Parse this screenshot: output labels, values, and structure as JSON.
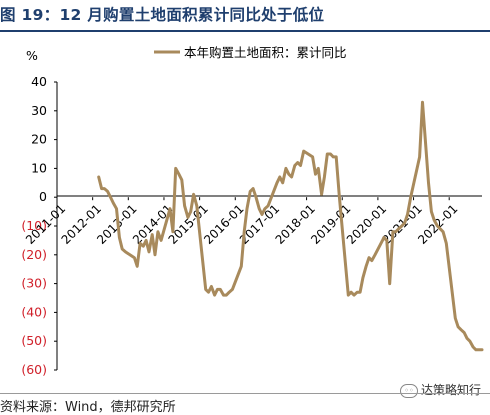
{
  "figure": {
    "title": "图 19：12 月购置土地面积累计同比处于低位",
    "source": "资料来源：Wind，德邦研究所",
    "watermark": "达策略知行"
  },
  "chart_data": {
    "type": "line",
    "ylabel": "%",
    "ylim": [
      -60,
      40
    ],
    "yticks": [
      40,
      30,
      20,
      10,
      0,
      -10,
      -20,
      -30,
      -40,
      -50,
      -60
    ],
    "ytick_labels": [
      "40",
      "30",
      "20",
      "10",
      "0",
      "(10)",
      "(20)",
      "(30)",
      "(40)",
      "(50)",
      "(60)"
    ],
    "xtick_labels": [
      "2011-01",
      "2012-01",
      "2013-01",
      "2014-01",
      "2015-01",
      "2016-01",
      "2017-01",
      "2018-01",
      "2019-01",
      "2020-01",
      "2021-01",
      "2022-01"
    ],
    "xlim": [
      2011.0,
      2022.92
    ],
    "series": [
      {
        "name": "本年购置土地面积：累计同比",
        "color": "#a88a5c",
        "x": [
          2012.17,
          2012.25,
          2012.33,
          2012.42,
          2012.5,
          2012.58,
          2012.67,
          2012.75,
          2012.83,
          2012.92,
          2013.17,
          2013.25,
          2013.33,
          2013.42,
          2013.5,
          2013.58,
          2013.67,
          2013.75,
          2013.83,
          2013.92,
          2014.17,
          2014.25,
          2014.33,
          2014.42,
          2014.5,
          2014.58,
          2014.67,
          2014.75,
          2014.83,
          2014.92,
          2015.17,
          2015.25,
          2015.33,
          2015.42,
          2015.5,
          2015.58,
          2015.67,
          2015.75,
          2015.83,
          2015.92,
          2016.17,
          2016.25,
          2016.33,
          2016.42,
          2016.5,
          2016.58,
          2016.67,
          2016.75,
          2016.83,
          2016.92,
          2017.17,
          2017.25,
          2017.33,
          2017.42,
          2017.5,
          2017.58,
          2017.67,
          2017.75,
          2017.83,
          2017.92,
          2018.17,
          2018.25,
          2018.33,
          2018.42,
          2018.5,
          2018.58,
          2018.67,
          2018.75,
          2018.83,
          2018.92,
          2019.17,
          2019.25,
          2019.33,
          2019.42,
          2019.5,
          2019.58,
          2019.67,
          2019.75,
          2019.83,
          2019.92,
          2020.17,
          2020.25,
          2020.33,
          2020.42,
          2020.5,
          2020.58,
          2020.67,
          2020.75,
          2020.83,
          2020.92,
          2021.17,
          2021.25,
          2021.33,
          2021.42,
          2021.5,
          2021.58,
          2021.67,
          2021.75,
          2021.83,
          2021.92,
          2022.17,
          2022.25,
          2022.33,
          2022.42,
          2022.5,
          2022.58,
          2022.67,
          2022.75,
          2022.83,
          2022.92
        ],
        "values": [
          7,
          3,
          3,
          2,
          0,
          -2,
          -4,
          -14,
          -18,
          -19,
          -21,
          -24,
          -16,
          -17,
          -15,
          -19,
          -13,
          -20,
          -12,
          -15,
          -4,
          -12,
          10,
          8,
          6,
          -3,
          -7,
          -5,
          1,
          -3,
          -32,
          -33,
          -31,
          -34,
          -32,
          -32,
          -34,
          -34,
          -33,
          -32,
          -24,
          -12,
          -4,
          2,
          3,
          0,
          -4,
          -6,
          -4,
          -3,
          5,
          7,
          5,
          10,
          8,
          7,
          11,
          12,
          11,
          16,
          14,
          8,
          10,
          1,
          7,
          15,
          15,
          14,
          14,
          0,
          -34,
          -33,
          -34,
          -33,
          -33,
          -28,
          -24,
          -21,
          -22,
          -20,
          -14,
          -15,
          -30,
          -12,
          -12,
          -11,
          -10,
          -9,
          -6,
          0,
          14,
          33,
          20,
          5,
          -5,
          -8,
          -10,
          -11,
          -12,
          -16,
          -42,
          -45,
          -46,
          -47,
          -49,
          -50,
          -52,
          -53,
          -53,
          -53
        ]
      }
    ],
    "grid": false,
    "legend": "top"
  }
}
